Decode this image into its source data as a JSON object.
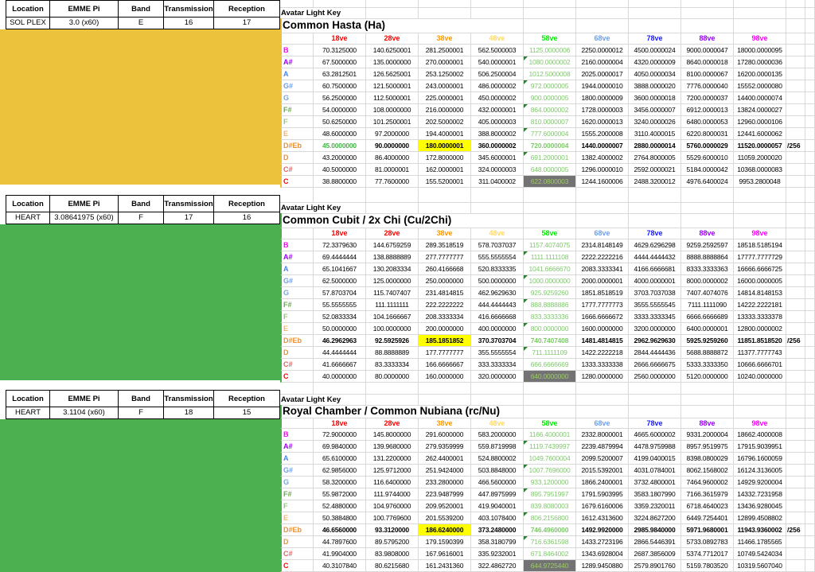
{
  "column_colors": [
    "#ff0000",
    "#ff0000",
    "#ff9900",
    "#ffd966",
    "#00ee00",
    "#6d9eeb",
    "#1a1aff",
    "#9900ff",
    "#ff00ff"
  ],
  "theme": {
    "gridline": "#d9d9d9",
    "col58_text": "#7fc96b",
    "gray_cell_bg": "#737373",
    "gray_cell_text": "#9ccc65",
    "highlight_bg": "#ffff00",
    "flag_triangle": "#2e7d32",
    "green18_text": "#46b54a",
    "yellow_block": "#ecc23d",
    "green_block": "#4caf50"
  },
  "sections": [
    {
      "info": {
        "headers": [
          "Location",
          "EMME Pi",
          "Band",
          "Transmission",
          "Reception"
        ],
        "values": [
          "SOL PLEX",
          "3.0 (x60)",
          "E",
          "16",
          "17"
        ]
      },
      "block_color": "#ecc23d",
      "key_label": "Avatar Light Key",
      "title": "Common Hasta (Ha)",
      "columns": [
        "18ve",
        "28ve",
        "38ve",
        "48ve",
        "58ve",
        "68ve",
        "78ve",
        "88ve",
        "98ve"
      ],
      "rows": [
        {
          "note": "B",
          "color": "#ff00ff",
          "values": [
            "70.3125000",
            "140.6250001",
            "281.2500001",
            "562.5000003",
            "1125.0000006",
            "2250.0000012",
            "4500.0000024",
            "9000.0000047",
            "18000.0000095"
          ]
        },
        {
          "note": "A#",
          "color": "#9900ff",
          "flag": 1,
          "values": [
            "67.5000000",
            "135.0000000",
            "270.0000001",
            "540.0000001",
            "1080.0000002",
            "2160.0000004",
            "4320.0000009",
            "8640.0000018",
            "17280.0000036"
          ]
        },
        {
          "note": "A",
          "color": "#4a86e8",
          "values": [
            "63.2812501",
            "126.5625001",
            "253.1250002",
            "506.2500004",
            "1012.5000008",
            "2025.0000017",
            "4050.0000034",
            "8100.0000067",
            "16200.0000135"
          ]
        },
        {
          "note": "G#",
          "color": "#6d9eeb",
          "flag": 1,
          "values": [
            "60.7500000",
            "121.5000001",
            "243.0000001",
            "486.0000002",
            "972.0000005",
            "1944.0000010",
            "3888.0000020",
            "7776.0000040",
            "15552.0000080"
          ]
        },
        {
          "note": "G",
          "color": "#6fa8dc",
          "values": [
            "56.2500000",
            "112.5000001",
            "225.0000001",
            "450.0000002",
            "900.0000005",
            "1800.0000009",
            "3600.0000018",
            "7200.0000037",
            "14400.0000074"
          ]
        },
        {
          "note": "F#",
          "color": "#6aa84f",
          "flag": 1,
          "values": [
            "54.0000000",
            "108.0000000",
            "216.0000000",
            "432.0000001",
            "864.0000002",
            "1728.0000003",
            "3456.0000007",
            "6912.0000013",
            "13824.0000027"
          ]
        },
        {
          "note": "F",
          "color": "#93c47d",
          "values": [
            "50.6250000",
            "101.2500001",
            "202.5000002",
            "405.0000003",
            "810.0000007",
            "1620.0000013",
            "3240.0000026",
            "6480.0000053",
            "12960.0000106"
          ]
        },
        {
          "note": "E",
          "color": "#f6b26b",
          "flag": 1,
          "values": [
            "48.6000000",
            "97.2000000",
            "194.4000001",
            "388.8000002",
            "777.6000004",
            "1555.2000008",
            "3110.4000015",
            "6220.8000031",
            "12441.6000062"
          ]
        },
        {
          "note": "D#Eb",
          "color": "#e69138",
          "bold": 1,
          "hl38": 1,
          "green18": 1,
          "suffix": "/256",
          "values": [
            "45.0000000",
            "90.0000000",
            "180.0000001",
            "360.0000002",
            "720.0000004",
            "1440.0000007",
            "2880.0000014",
            "5760.0000029",
            "11520.0000057"
          ]
        },
        {
          "note": "D",
          "color": "#e69138",
          "flag": 1,
          "values": [
            "43.2000000",
            "86.4000000",
            "172.8000000",
            "345.6000001",
            "691.2000001",
            "1382.4000002",
            "2764.8000005",
            "5529.6000010",
            "11059.2000020"
          ]
        },
        {
          "note": "C#",
          "color": "#e06666",
          "values": [
            "40.5000000",
            "81.0000001",
            "162.0000001",
            "324.0000003",
            "648.0000005",
            "1296.0000010",
            "2592.0000021",
            "5184.0000042",
            "10368.0000083"
          ]
        },
        {
          "note": "C",
          "color": "#ff0000",
          "gray58": 1,
          "values": [
            "38.8800000",
            "77.7600000",
            "155.5200001",
            "311.0400002",
            "622.0800003",
            "1244.1600006",
            "2488.3200012",
            "4976.6400024",
            "9953.2800048"
          ]
        }
      ]
    },
    {
      "info": {
        "headers": [
          "Location",
          "EMME Pi",
          "Band",
          "Transmission",
          "Reception"
        ],
        "values": [
          "HEART",
          "3.08641975 (x60)",
          "F",
          "17",
          "16"
        ]
      },
      "block_color": "#4caf50",
      "key_label": "Avatar Light Key",
      "title": "Common Cubit / 2x Chi (Cu/2Chi)",
      "columns": [
        "18ve",
        "28ve",
        "38ve",
        "48ve",
        "58ve",
        "68ve",
        "78ve",
        "88ve",
        "98ve"
      ],
      "rows": [
        {
          "note": "B",
          "color": "#ff00ff",
          "values": [
            "72.3379630",
            "144.6759259",
            "289.3518519",
            "578.7037037",
            "1157.4074075",
            "2314.8148149",
            "4629.6296298",
            "9259.2592597",
            "18518.5185194"
          ]
        },
        {
          "note": "A#",
          "color": "#9900ff",
          "flag": 1,
          "values": [
            "69.4444444",
            "138.8888889",
            "277.7777777",
            "555.5555554",
            "1111.1111108",
            "2222.2222216",
            "4444.4444432",
            "8888.8888864",
            "17777.7777729"
          ]
        },
        {
          "note": "A",
          "color": "#4a86e8",
          "values": [
            "65.1041667",
            "130.2083334",
            "260.4166668",
            "520.8333335",
            "1041.6666670",
            "2083.3333341",
            "4166.6666681",
            "8333.3333363",
            "16666.6666725"
          ]
        },
        {
          "note": "G#",
          "color": "#6d9eeb",
          "flag": 1,
          "values": [
            "62.5000000",
            "125.0000000",
            "250.0000000",
            "500.0000000",
            "1000.0000000",
            "2000.0000001",
            "4000.0000001",
            "8000.0000002",
            "16000.0000005"
          ]
        },
        {
          "note": "G",
          "color": "#6fa8dc",
          "values": [
            "57.8703704",
            "115.7407407",
            "231.4814815",
            "462.9629630",
            "925.9259260",
            "1851.8518519",
            "3703.7037038",
            "7407.4074076",
            "14814.8148153"
          ]
        },
        {
          "note": "F#",
          "color": "#6aa84f",
          "flag": 1,
          "values": [
            "55.5555555",
            "111.1111111",
            "222.2222222",
            "444.4444443",
            "888.8888886",
            "1777.7777773",
            "3555.5555545",
            "7111.1111090",
            "14222.2222181"
          ]
        },
        {
          "note": "F",
          "color": "#93c47d",
          "values": [
            "52.0833334",
            "104.1666667",
            "208.3333334",
            "416.6666668",
            "833.3333336",
            "1666.6666672",
            "3333.3333345",
            "6666.6666689",
            "13333.3333378"
          ]
        },
        {
          "note": "E",
          "color": "#f6b26b",
          "flag": 1,
          "values": [
            "50.0000000",
            "100.0000000",
            "200.0000000",
            "400.0000000",
            "800.0000000",
            "1600.0000000",
            "3200.0000000",
            "6400.0000001",
            "12800.0000002"
          ]
        },
        {
          "note": "D#Eb",
          "color": "#e69138",
          "bold": 1,
          "hl38": 1,
          "suffix": "/256",
          "values": [
            "46.2962963",
            "92.5925926",
            "185.1851852",
            "370.3703704",
            "740.7407408",
            "1481.4814815",
            "2962.9629630",
            "5925.9259260",
            "11851.8518520"
          ]
        },
        {
          "note": "D",
          "color": "#e69138",
          "flag": 1,
          "values": [
            "44.4444444",
            "88.8888889",
            "177.7777777",
            "355.5555554",
            "711.1111109",
            "1422.2222218",
            "2844.4444436",
            "5688.8888872",
            "11377.7777743"
          ]
        },
        {
          "note": "C#",
          "color": "#e06666",
          "values": [
            "41.6666667",
            "83.3333334",
            "166.6666667",
            "333.3333334",
            "666.6666669",
            "1333.3333338",
            "2666.6666675",
            "5333.3333350",
            "10666.6666701"
          ]
        },
        {
          "note": "C",
          "color": "#ff0000",
          "gray58": 1,
          "values": [
            "40.0000000",
            "80.0000000",
            "160.0000000",
            "320.0000000",
            "640.0000000",
            "1280.0000000",
            "2560.0000000",
            "5120.0000000",
            "10240.0000000"
          ]
        }
      ]
    },
    {
      "info": {
        "headers": [
          "Location",
          "EMME Pi",
          "Band",
          "Transmission",
          "Reception"
        ],
        "values": [
          "HEART",
          "3.1104 (x60)",
          "F",
          "18",
          "15"
        ]
      },
      "block_color": "#4caf50",
      "key_label": "Avatar Light Key",
      "title": "Royal Chamber / Common Nubiana (rc/Nu)",
      "columns": [
        "18ve",
        "28ve",
        "38ve",
        "48ve",
        "58ve",
        "68ve",
        "78ve",
        "88ve",
        "98ve"
      ],
      "rows": [
        {
          "note": "B",
          "color": "#ff00ff",
          "values": [
            "72.9000000",
            "145.8000000",
            "291.6000000",
            "583.2000000",
            "1166.4000001",
            "2332.8000001",
            "4665.6000002",
            "9331.2000004",
            "18662.4000008"
          ]
        },
        {
          "note": "A#",
          "color": "#9900ff",
          "flag": 1,
          "values": [
            "69.9840000",
            "139.9680000",
            "279.9359999",
            "559.8719998",
            "1119.7439997",
            "2239.4879994",
            "4478.9759988",
            "8957.9519975",
            "17915.9039951"
          ]
        },
        {
          "note": "A",
          "color": "#4a86e8",
          "values": [
            "65.6100000",
            "131.2200000",
            "262.4400001",
            "524.8800002",
            "1049.7600004",
            "2099.5200007",
            "4199.0400015",
            "8398.0800029",
            "16796.1600059"
          ]
        },
        {
          "note": "G#",
          "color": "#6d9eeb",
          "flag": 1,
          "values": [
            "62.9856000",
            "125.9712000",
            "251.9424000",
            "503.8848000",
            "1007.7696000",
            "2015.5392001",
            "4031.0784001",
            "8062.1568002",
            "16124.3136005"
          ]
        },
        {
          "note": "G",
          "color": "#6fa8dc",
          "values": [
            "58.3200000",
            "116.6400000",
            "233.2800000",
            "466.5600000",
            "933.1200000",
            "1866.2400001",
            "3732.4800001",
            "7464.9600002",
            "14929.9200004"
          ]
        },
        {
          "note": "F#",
          "color": "#6aa84f",
          "flag": 1,
          "values": [
            "55.9872000",
            "111.9744000",
            "223.9487999",
            "447.8975999",
            "895.7951997",
            "1791.5903995",
            "3583.1807990",
            "7166.3615979",
            "14332.7231958"
          ]
        },
        {
          "note": "F",
          "color": "#93c47d",
          "values": [
            "52.4880000",
            "104.9760000",
            "209.9520001",
            "419.9040001",
            "839.8080003",
            "1679.6160006",
            "3359.2320011",
            "6718.4640023",
            "13436.9280045"
          ]
        },
        {
          "note": "E",
          "color": "#f6b26b",
          "flag": 1,
          "values": [
            "50.3884800",
            "100.7769600",
            "201.5539200",
            "403.1078400",
            "806.2156800",
            "1612.4313600",
            "3224.8627200",
            "6449.7254401",
            "12899.4508802"
          ]
        },
        {
          "note": "D#Eb",
          "color": "#e69138",
          "bold": 1,
          "hl38": 1,
          "suffix": "/256",
          "values": [
            "46.6560000",
            "93.3120000",
            "186.6240000",
            "373.2480000",
            "746.4960000",
            "1492.9920000",
            "2985.9840000",
            "5971.9680001",
            "11943.9360002"
          ]
        },
        {
          "note": "D",
          "color": "#e69138",
          "flag": 1,
          "values": [
            "44.7897600",
            "89.5795200",
            "179.1590399",
            "358.3180799",
            "716.6361598",
            "1433.2723196",
            "2866.5446391",
            "5733.0892783",
            "11466.1785565"
          ]
        },
        {
          "note": "C#",
          "color": "#e06666",
          "values": [
            "41.9904000",
            "83.9808000",
            "167.9616001",
            "335.9232001",
            "671.8464002",
            "1343.6928004",
            "2687.3856009",
            "5374.7712017",
            "10749.5424034"
          ]
        },
        {
          "note": "C",
          "color": "#ff0000",
          "gray58": 1,
          "values": [
            "40.3107840",
            "80.6215680",
            "161.2431360",
            "322.4862720",
            "644.9725440",
            "1289.9450880",
            "2579.8901760",
            "5159.7803520",
            "10319.5607040"
          ]
        }
      ]
    }
  ]
}
